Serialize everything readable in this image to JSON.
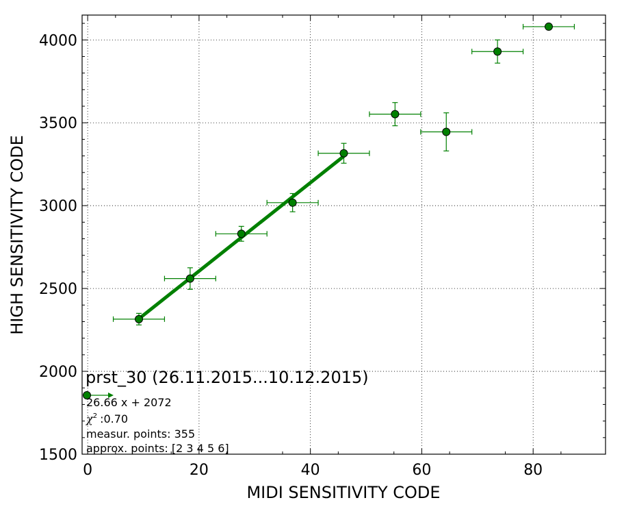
{
  "chart_data": {
    "type": "scatter",
    "title": "prst_30 (26.11.2015...10.12.2015)",
    "xlabel": "MIDI SENSITIVITY CODE",
    "ylabel": "HIGH SENSITIVITY CODE",
    "xlim": [
      -1,
      93
    ],
    "ylim": [
      1500,
      4150
    ],
    "xticks": [
      0,
      20,
      40,
      60,
      80
    ],
    "yticks": [
      1500,
      2000,
      2500,
      3000,
      3500,
      4000
    ],
    "grid": true,
    "color": "#008000",
    "points": [
      {
        "x": 9.2,
        "y": 2315,
        "xerr": 4.6,
        "yerr": 35
      },
      {
        "x": 18.4,
        "y": 2560,
        "xerr": 4.6,
        "yerr": 65
      },
      {
        "x": 27.6,
        "y": 2830,
        "xerr": 4.6,
        "yerr": 45
      },
      {
        "x": 36.8,
        "y": 3018,
        "xerr": 4.6,
        "yerr": 55
      },
      {
        "x": 46.0,
        "y": 3316,
        "xerr": 4.6,
        "yerr": 60
      },
      {
        "x": 55.2,
        "y": 3552,
        "xerr": 4.6,
        "yerr": 70
      },
      {
        "x": 64.4,
        "y": 3445,
        "xerr": 4.6,
        "yerr": 115
      },
      {
        "x": 73.6,
        "y": 3930,
        "xerr": 4.6,
        "yerr": 70
      },
      {
        "x": 82.8,
        "y": 4080,
        "xerr": 4.6,
        "yerr": 0
      }
    ],
    "fit": {
      "slope": 26.66,
      "intercept": 2072,
      "x_range": [
        9.2,
        46.0
      ]
    },
    "legend": {
      "fit_label": "26.66 x + 2072",
      "chi2_label": ":0.70",
      "measur_points": "measur. points: 355",
      "approx_points": "approx. points: [2 3 4 5 6]"
    }
  }
}
